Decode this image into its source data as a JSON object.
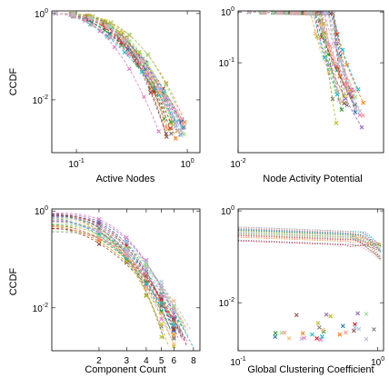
{
  "chart_data": [
    {
      "type": "line",
      "title": "",
      "xlabel": "Active Nodes",
      "ylabel": "CCDF",
      "xscale": "log",
      "yscale": "log",
      "xlim": [
        0.06,
        1.3
      ],
      "ylim": [
        0.0006,
        1.15
      ],
      "x_ticks": [
        {
          "value": 0.1,
          "base": "10",
          "exp": "-1"
        },
        {
          "value": 1,
          "base": "10",
          "exp": "0"
        }
      ],
      "y_ticks": [
        {
          "value": 0.01,
          "base": "10",
          "exp": "-2"
        },
        {
          "value": 1,
          "base": "10",
          "exp": "0"
        }
      ],
      "grid": false,
      "legend": "none",
      "series_count": 30,
      "curve_style": "dashed lines with x markers",
      "curve_range": {
        "x_start": 0.065,
        "x_end_min": 0.55,
        "x_end_max": 0.95,
        "y_end_min": 0.001,
        "y_end_max": 0.004
      },
      "colors": [
        "#1f77b4",
        "#ff7f0e",
        "#2ca02c",
        "#d62728",
        "#9467bd",
        "#8c564b",
        "#e377c2",
        "#7f7f7f",
        "#bcbd22",
        "#17becf",
        "#aec7e8",
        "#ffbb78",
        "#98df8a",
        "#ff9896",
        "#c5b0d5"
      ]
    },
    {
      "type": "line",
      "title": "",
      "xlabel": "Node Activity Potential",
      "ylabel": "",
      "xscale": "log",
      "yscale": "log",
      "xlim": [
        0.01,
        0.12
      ],
      "ylim": [
        0.0017,
        1.05
      ],
      "x_ticks": [
        {
          "value": 0.01,
          "base": "10",
          "exp": "-2"
        }
      ],
      "y_ticks": [
        {
          "value": 0.1,
          "base": "10",
          "exp": "-1"
        },
        {
          "value": 1,
          "base": "10",
          "exp": "0"
        }
      ],
      "grid": false,
      "legend": "none",
      "series_count": 30,
      "curve_style": "dashed lines with x markers",
      "curve_range": {
        "x_start": 0.012,
        "x_knee_min": 0.035,
        "x_knee_max": 0.055,
        "x_end_min": 0.05,
        "x_end_max": 0.085,
        "y_end_min": 0.003,
        "y_end_max": 0.03
      },
      "colors": [
        "#1f77b4",
        "#ff7f0e",
        "#2ca02c",
        "#d62728",
        "#9467bd",
        "#8c564b",
        "#e377c2",
        "#7f7f7f",
        "#bcbd22",
        "#17becf",
        "#aec7e8",
        "#ffbb78",
        "#98df8a",
        "#ff9896",
        "#c5b0d5"
      ]
    },
    {
      "type": "line",
      "title": "",
      "xlabel": "Component Count",
      "ylabel": "CCDF",
      "xscale": "log",
      "yscale": "log",
      "xlim": [
        1,
        8.8
      ],
      "ylim": [
        0.0013,
        1.1
      ],
      "x_ticks": [
        {
          "value": 2,
          "label": "2"
        },
        {
          "value": 3,
          "label": "3"
        },
        {
          "value": 4,
          "label": "4"
        },
        {
          "value": 5,
          "label": "5"
        },
        {
          "value": 6,
          "label": "6"
        },
        {
          "value": 8,
          "label": "8"
        }
      ],
      "y_ticks": [
        {
          "value": 0.01,
          "base": "10",
          "exp": "-2"
        },
        {
          "value": 1,
          "base": "10",
          "exp": "0"
        }
      ],
      "grid": false,
      "legend": "none",
      "series_count": 30,
      "curve_style": "dashed lines with x markers",
      "marker_x": [
        2,
        3,
        4,
        5,
        6
      ],
      "curve_range": {
        "x_start": 1,
        "x_end_min": 5,
        "x_end_max": 8,
        "y_end_min": 0.0015,
        "y_end_max": 0.004
      },
      "colors": [
        "#1f77b4",
        "#ff7f0e",
        "#2ca02c",
        "#d62728",
        "#9467bd",
        "#8c564b",
        "#e377c2",
        "#7f7f7f",
        "#bcbd22",
        "#17becf",
        "#aec7e8",
        "#ffbb78",
        "#98df8a",
        "#ff9896",
        "#c5b0d5"
      ]
    },
    {
      "type": "scatter",
      "title": "",
      "xlabel": "Global Clustering Coefficient",
      "ylabel": "",
      "xscale": "log",
      "yscale": "log",
      "xlim": [
        0.1,
        1.1
      ],
      "ylim": [
        0.0009,
        1.1
      ],
      "x_ticks": [
        {
          "value": 0.1,
          "base": "10",
          "exp": "-1"
        },
        {
          "value": 1,
          "base": "10",
          "exp": "0"
        }
      ],
      "y_ticks": [
        {
          "value": 0.01,
          "base": "10",
          "exp": "-2"
        },
        {
          "value": 1,
          "base": "10",
          "exp": "0"
        }
      ],
      "grid": false,
      "legend": "none",
      "series_count": 30,
      "curve_style": "dotted lines plus scattered x markers",
      "curve_range": {
        "x_start": 0.1,
        "y_start_min": 0.22,
        "y_start_max": 0.45,
        "x_drop_min": 0.6,
        "x_drop_max": 0.9,
        "y_end_min": 0.08,
        "y_end_max": 0.2
      },
      "scatter_range": {
        "x_min": 0.18,
        "x_max": 0.95,
        "y_min": 0.0015,
        "y_max": 0.006
      },
      "colors": [
        "#1f77b4",
        "#ff7f0e",
        "#2ca02c",
        "#d62728",
        "#9467bd",
        "#8c564b",
        "#e377c2",
        "#7f7f7f",
        "#bcbd22",
        "#17becf",
        "#aec7e8",
        "#ffbb78",
        "#98df8a",
        "#ff9896",
        "#c5b0d5"
      ]
    }
  ]
}
